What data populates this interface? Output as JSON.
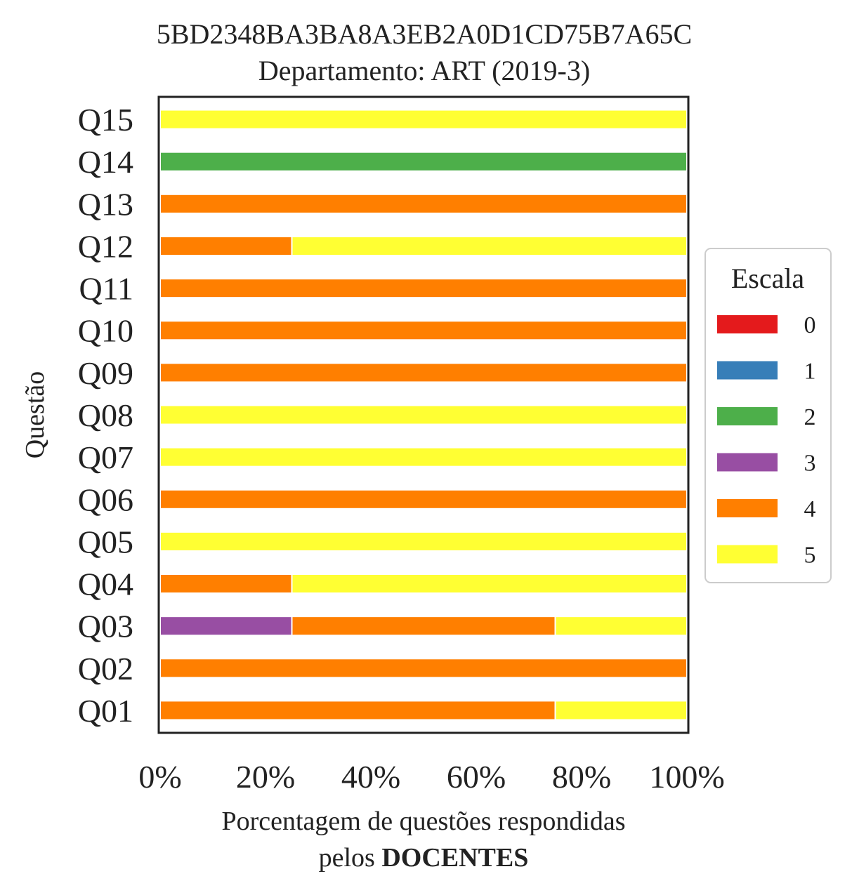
{
  "chart_data": {
    "type": "bar",
    "orientation": "horizontal",
    "stacked": true,
    "title": "5BD2348BA3BA8A3EB2A0D1CD75B7A65C",
    "subtitle": "Departamento: ART (2019-3)",
    "xlabel_line1": "Porcentagem de questões respondidas",
    "xlabel_line2_prefix": "pelos ",
    "xlabel_line2_bold": "DOCENTES",
    "ylabel": "Questão",
    "xlim": [
      0,
      100
    ],
    "xticks": [
      0,
      20,
      40,
      60,
      80,
      100
    ],
    "xtick_labels": [
      "0%",
      "20%",
      "40%",
      "60%",
      "80%",
      "100%"
    ],
    "categories": [
      "Q01",
      "Q02",
      "Q03",
      "Q04",
      "Q05",
      "Q06",
      "Q07",
      "Q08",
      "Q09",
      "Q10",
      "Q11",
      "Q12",
      "Q13",
      "Q14",
      "Q15"
    ],
    "series": [
      {
        "name": "0",
        "color": "#e41a1c",
        "values": [
          0,
          0,
          0,
          0,
          0,
          0,
          0,
          0,
          0,
          0,
          0,
          0,
          0,
          0,
          0
        ]
      },
      {
        "name": "1",
        "color": "#377eb8",
        "values": [
          0,
          0,
          0,
          0,
          0,
          0,
          0,
          0,
          0,
          0,
          0,
          0,
          0,
          0,
          0
        ]
      },
      {
        "name": "2",
        "color": "#4daf4a",
        "values": [
          0,
          0,
          0,
          0,
          0,
          0,
          0,
          0,
          0,
          0,
          0,
          0,
          0,
          100,
          0
        ]
      },
      {
        "name": "3",
        "color": "#984ea3",
        "values": [
          0,
          0,
          25,
          0,
          0,
          0,
          0,
          0,
          0,
          0,
          0,
          0,
          0,
          0,
          0
        ]
      },
      {
        "name": "4",
        "color": "#ff7f00",
        "values": [
          75,
          100,
          50,
          25,
          0,
          100,
          0,
          0,
          100,
          100,
          100,
          25,
          100,
          0,
          0
        ]
      },
      {
        "name": "5",
        "color": "#ffff33",
        "values": [
          25,
          0,
          25,
          75,
          100,
          0,
          100,
          100,
          0,
          0,
          0,
          75,
          0,
          0,
          100
        ]
      }
    ],
    "legend": {
      "title": "Escala",
      "placement": "center-right, outside plot"
    },
    "grid": false
  }
}
